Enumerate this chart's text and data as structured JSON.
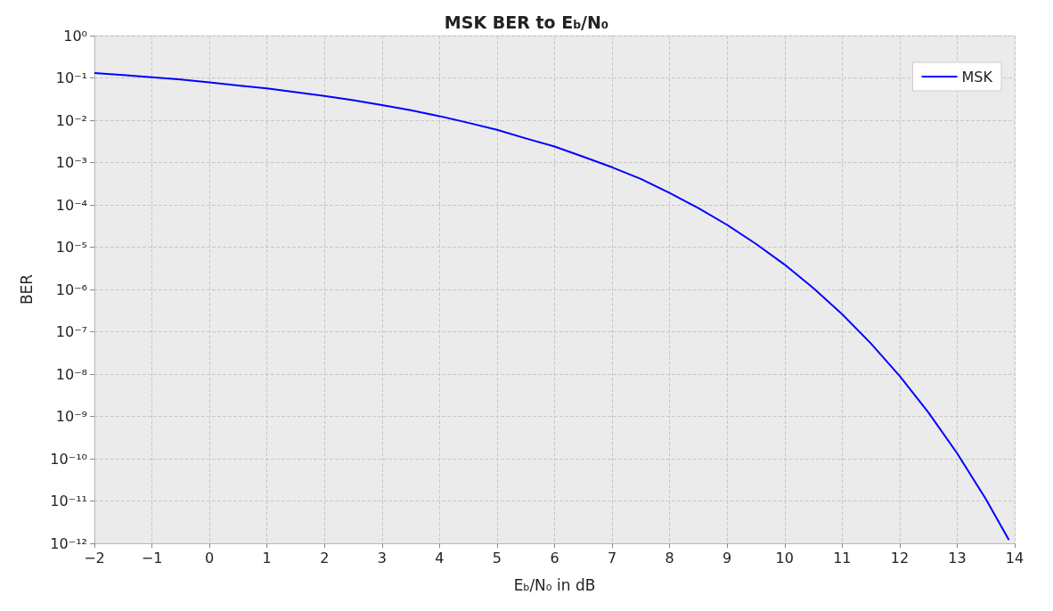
{
  "chart_data": {
    "type": "line",
    "title": "MSK BER to E$_{b}$/N₀",
    "xlabel": "E$_{b}$/N₀ in dB",
    "ylabel": "BER",
    "x": [
      -2,
      -1.5,
      -1,
      -0.5,
      0,
      0.5,
      1,
      1.5,
      2,
      2.5,
      3,
      3.5,
      4,
      4.5,
      5,
      5.5,
      6,
      6.5,
      7,
      7.5,
      8,
      8.5,
      9,
      9.5,
      10,
      10.5,
      11,
      11.5,
      12,
      12.5,
      13,
      13.5,
      13.9
    ],
    "series": [
      {
        "name": "MSK",
        "color": "#0000ff",
        "values": [
          0.1306,
          0.117,
          0.104,
          0.0918,
          0.0786,
          0.0665,
          0.0563,
          0.0459,
          0.0375,
          0.0298,
          0.0229,
          0.0173,
          0.0125,
          0.0087,
          0.00595,
          0.00372,
          0.00239,
          0.00137,
          0.000773,
          0.000411,
          0.000191,
          8.4e-05,
          3.36e-05,
          1.2e-05,
          3.87e-06,
          1.08e-06,
          2.61e-07,
          5.3e-08,
          9e-09,
          1.24e-09,
          1.34e-10,
          1.1e-11,
          1.2e-12
        ]
      }
    ],
    "xlim": [
      -2,
      14
    ],
    "xticks": [
      {
        "value": -2,
        "label": "−2"
      },
      {
        "value": -1,
        "label": "−1"
      },
      0,
      1,
      2,
      3,
      4,
      5,
      6,
      7,
      8,
      9,
      10,
      11,
      12,
      13,
      14
    ],
    "ylim": [
      1e-12,
      1
    ],
    "yticks": [
      {
        "value": 1e-12,
        "label": "10⁻¹²"
      },
      {
        "value": 1e-11,
        "label": "10⁻¹¹"
      },
      {
        "value": 1e-10,
        "label": "10⁻¹⁰"
      },
      {
        "value": 1e-09,
        "label": "10⁻⁹"
      },
      {
        "value": 1e-08,
        "label": "10⁻⁸"
      },
      {
        "value": 1e-07,
        "label": "10⁻⁷"
      },
      {
        "value": 1e-06,
        "label": "10⁻⁶"
      },
      {
        "value": 1e-05,
        "label": "10⁻⁵"
      },
      {
        "value": 0.0001,
        "label": "10⁻⁴"
      },
      {
        "value": 0.001,
        "label": "10⁻³"
      },
      {
        "value": 0.01,
        "label": "10⁻²"
      },
      {
        "value": 0.1,
        "label": "10⁻¹"
      },
      {
        "value": 1,
        "label": "10⁰"
      }
    ],
    "log": "y",
    "grid": true,
    "legend": "top right",
    "marker": "none",
    "line_style": "solid"
  }
}
